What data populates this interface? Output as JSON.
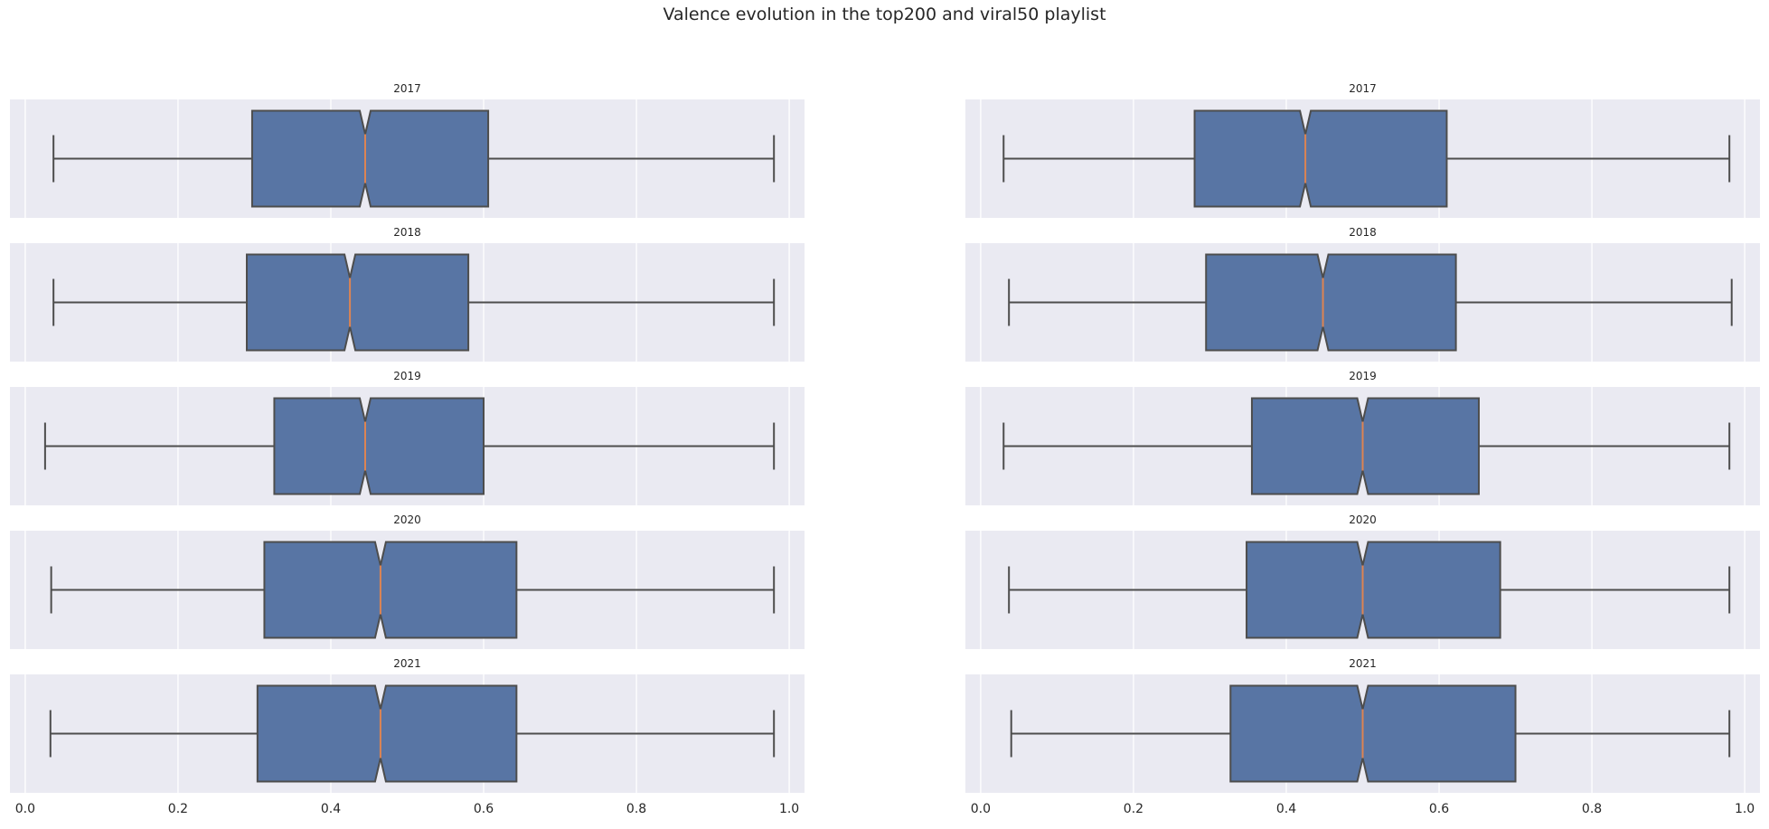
{
  "figure": {
    "suptitle": "Valence evolution in the top200 and viral50 playlist",
    "colors": {
      "panel_bg": "#eaeaf2",
      "grid": "#ffffff",
      "box_fill": "#5875a4",
      "box_edge": "#4d4d4d",
      "median": "#dd8452"
    }
  },
  "chart_data": [
    {
      "type": "boxplot",
      "orientation": "horizontal",
      "playlist": "top200",
      "xlim": [
        -0.02,
        1.02
      ],
      "xticks": [
        0.0,
        0.2,
        0.4,
        0.6,
        0.8,
        1.0
      ],
      "xtick_labels": [
        "0.0",
        "0.2",
        "0.4",
        "0.6",
        "0.8",
        "1.0"
      ],
      "grid": true,
      "notch": true,
      "panels": [
        {
          "title": "2017",
          "whisker_low": 0.037,
          "q1": 0.297,
          "median": 0.445,
          "q3": 0.606,
          "whisker_high": 0.98
        },
        {
          "title": "2018",
          "whisker_low": 0.037,
          "q1": 0.29,
          "median": 0.425,
          "q3": 0.58,
          "whisker_high": 0.98
        },
        {
          "title": "2019",
          "whisker_low": 0.026,
          "q1": 0.326,
          "median": 0.445,
          "q3": 0.6,
          "whisker_high": 0.98
        },
        {
          "title": "2020",
          "whisker_low": 0.034,
          "q1": 0.313,
          "median": 0.465,
          "q3": 0.643,
          "whisker_high": 0.98
        },
        {
          "title": "2021",
          "whisker_low": 0.033,
          "q1": 0.304,
          "median": 0.465,
          "q3": 0.643,
          "whisker_high": 0.98
        }
      ]
    },
    {
      "type": "boxplot",
      "orientation": "horizontal",
      "playlist": "viral50",
      "xlim": [
        -0.02,
        1.02
      ],
      "xticks": [
        0.0,
        0.2,
        0.4,
        0.6,
        0.8,
        1.0
      ],
      "xtick_labels": [
        "0.0",
        "0.2",
        "0.4",
        "0.6",
        "0.8",
        "1.0"
      ],
      "grid": true,
      "notch": true,
      "panels": [
        {
          "title": "2017",
          "whisker_low": 0.03,
          "q1": 0.28,
          "median": 0.425,
          "q3": 0.61,
          "whisker_high": 0.98
        },
        {
          "title": "2018",
          "whisker_low": 0.037,
          "q1": 0.295,
          "median": 0.448,
          "q3": 0.622,
          "whisker_high": 0.983
        },
        {
          "title": "2019",
          "whisker_low": 0.03,
          "q1": 0.355,
          "median": 0.5,
          "q3": 0.652,
          "whisker_high": 0.98
        },
        {
          "title": "2020",
          "whisker_low": 0.037,
          "q1": 0.348,
          "median": 0.5,
          "q3": 0.68,
          "whisker_high": 0.98
        },
        {
          "title": "2021",
          "whisker_low": 0.04,
          "q1": 0.327,
          "median": 0.5,
          "q3": 0.7,
          "whisker_high": 0.98
        }
      ]
    }
  ]
}
